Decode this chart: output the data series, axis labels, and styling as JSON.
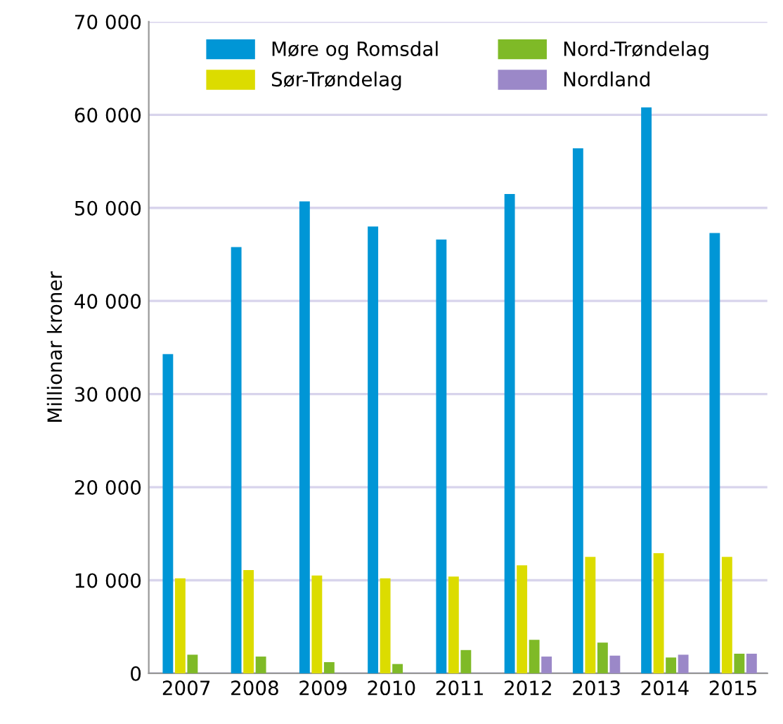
{
  "chart_data": {
    "type": "bar",
    "ylabel": "Millionar kroner",
    "categories": [
      "2007",
      "2008",
      "2009",
      "2010",
      "2011",
      "2012",
      "2013",
      "2014",
      "2015"
    ],
    "series": [
      {
        "name": "Møre og Romsdal",
        "color": "#0096d6",
        "values": [
          34300,
          45800,
          50700,
          48000,
          46600,
          51500,
          56400,
          60800,
          47300
        ]
      },
      {
        "name": "Sør-Trøndelag",
        "color": "#dcdc00",
        "values": [
          10200,
          11100,
          10500,
          10200,
          10400,
          11600,
          12500,
          12900,
          12500
        ]
      },
      {
        "name": "Nord-Trøndelag",
        "color": "#7fba27",
        "values": [
          2000,
          1800,
          1200,
          1000,
          2500,
          3600,
          3300,
          1700,
          2100
        ]
      },
      {
        "name": "Nordland",
        "color": "#9b88c8",
        "values": [
          0,
          0,
          0,
          0,
          0,
          1800,
          1900,
          2000,
          2100
        ]
      }
    ],
    "ylim": [
      0,
      70000
    ],
    "yticks": [
      0,
      {
        "value": 10000,
        "label": "10 000"
      },
      {
        "value": 20000,
        "label": "20 000"
      },
      {
        "value": 30000,
        "label": "30 000"
      },
      {
        "value": 40000,
        "label": "40 000"
      },
      {
        "value": 50000,
        "label": "50 000"
      },
      {
        "value": 60000,
        "label": "60 000"
      },
      {
        "value": 70000,
        "label": "70 000"
      }
    ],
    "grid": "y",
    "legend": "top"
  }
}
